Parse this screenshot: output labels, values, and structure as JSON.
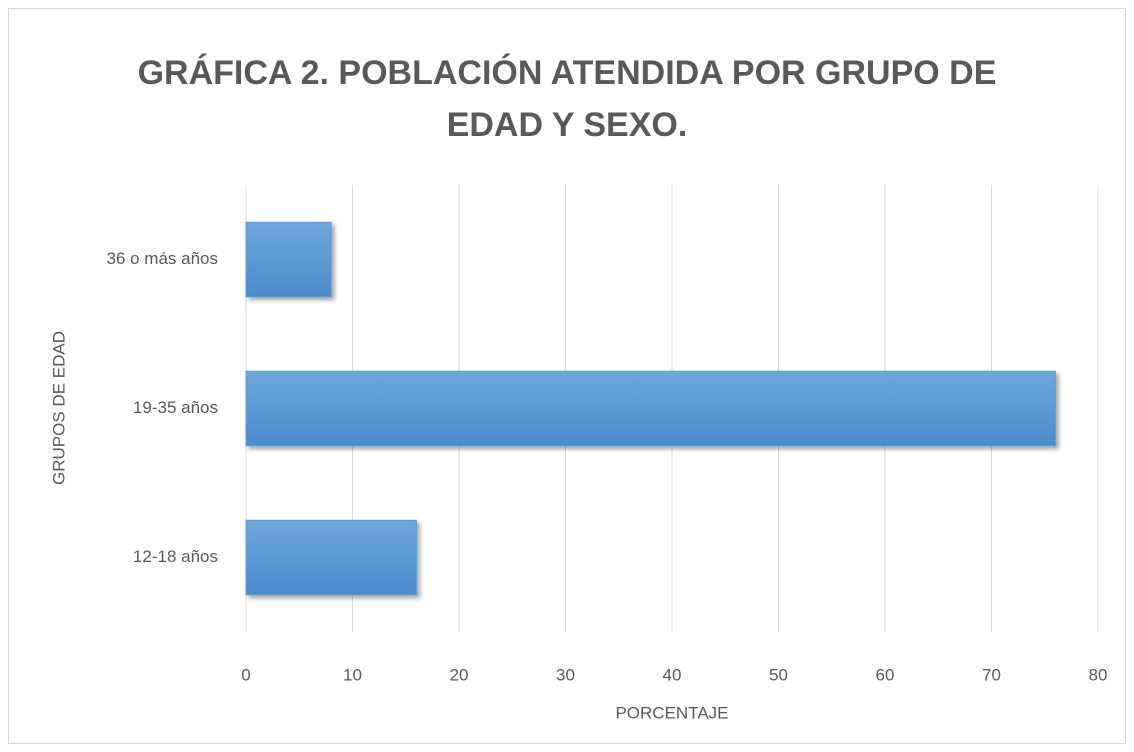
{
  "chart_data": {
    "type": "barh",
    "title": "GRÁFICA 2. POBLACIÓN ATENDIDA POR GRUPO DE EDAD Y SEXO.",
    "categories": [
      "12-18 años",
      "19-35 años",
      "36 o más años"
    ],
    "values": [
      16,
      76,
      8
    ],
    "color": "#5b9bd5",
    "xlabel": "PORCENTAJE",
    "ylabel": "GRUPOS DE EDAD",
    "xlim": [
      0,
      80
    ],
    "xticks": [
      0,
      10,
      20,
      30,
      40,
      50,
      60,
      70,
      80
    ],
    "grid": true
  }
}
